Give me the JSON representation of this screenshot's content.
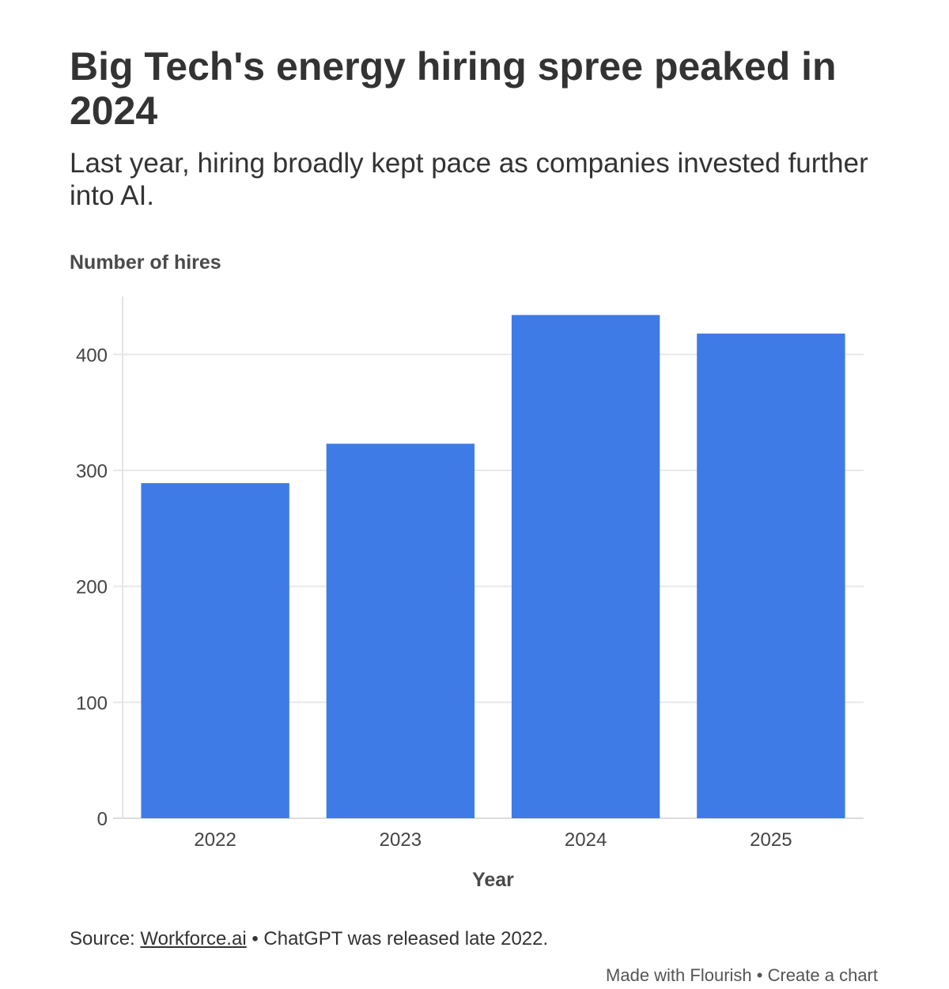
{
  "header": {
    "title": "Big Tech's energy hiring spree peaked in 2024",
    "subtitle": "Last year, hiring broadly kept pace as companies invested further into AI."
  },
  "chart_data": {
    "type": "bar",
    "title": "Big Tech's energy hiring spree peaked in 2024",
    "subtitle": "Last year, hiring broadly kept pace as companies invested further into AI.",
    "xlabel": "Year",
    "ylabel": "Number of hires",
    "categories": [
      "2022",
      "2023",
      "2024",
      "2025"
    ],
    "values": [
      289,
      323,
      434,
      418
    ],
    "ylim": [
      0,
      450
    ],
    "yticks": [
      0,
      100,
      200,
      300,
      400
    ],
    "grid": true,
    "bar_color": "#3f7be6"
  },
  "footer": {
    "source_prefix": "Source: ",
    "source_link": "Workforce.ai",
    "source_note": " • ChatGPT was released late 2022.",
    "made_with": "Made with Flourish",
    "separator": " • ",
    "create_chart": "Create a chart"
  }
}
